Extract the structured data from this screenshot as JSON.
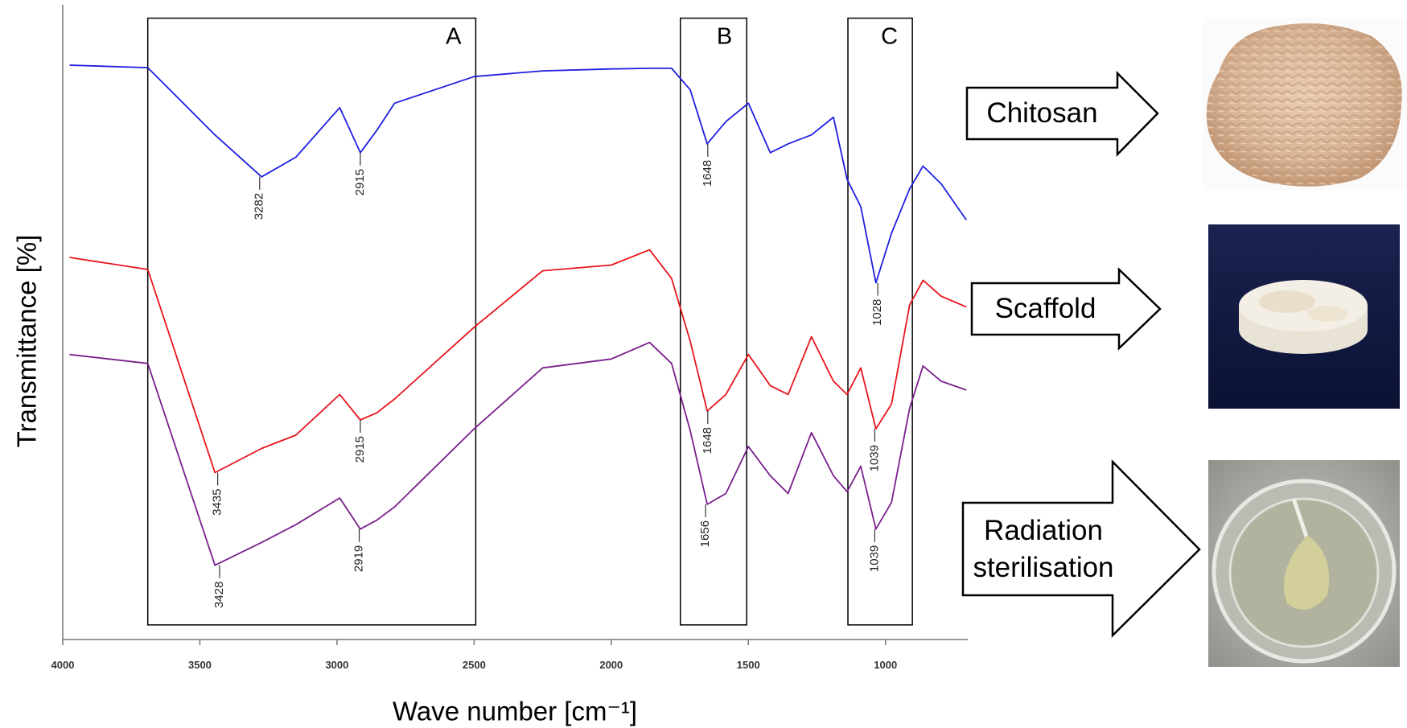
{
  "chart_data": {
    "type": "line",
    "y_label": "Transmittance [%]",
    "x_label": "Wave number [cm⁻¹]",
    "xlim": [
      4000,
      700
    ],
    "ylim": [
      0,
      100
    ],
    "xticks": [
      4000,
      3500,
      3000,
      2500,
      2000,
      1500,
      1000
    ],
    "x": [
      3975,
      3690,
      3445,
      3275,
      3150,
      2990,
      2915,
      2855,
      2790,
      2500,
      2250,
      2000,
      1860,
      1780,
      1712,
      1650,
      1582,
      1500,
      1420,
      1355,
      1270,
      1190,
      1140,
      1090,
      1035,
      978,
      912,
      863,
      797,
      705
    ],
    "series": [
      {
        "color": "#1f1fe0",
        "values": [
          90.5,
          90.1,
          79.5,
          72.9,
          76.0,
          83.8,
          76.7,
          80.2,
          84.5,
          88.7,
          89.6,
          89.9,
          90.0,
          90.0,
          86.6,
          78.1,
          81.6,
          84.5,
          76.7,
          78.1,
          79.5,
          82.3,
          72.5,
          68.2,
          56.2,
          64.0,
          71.0,
          74.6,
          71.8,
          66.1
        ]
      },
      {
        "color": "#e8141c",
        "values": [
          60.2,
          58.3,
          26.3,
          30.1,
          32.2,
          38.6,
          34.6,
          35.7,
          37.9,
          49.2,
          58.1,
          59.0,
          61.4,
          56.9,
          47.0,
          36.0,
          38.6,
          44.9,
          40.0,
          38.6,
          47.7,
          40.7,
          38.6,
          42.8,
          33.2,
          37.1,
          52.7,
          56.6,
          54.1,
          52.4
        ]
      },
      {
        "color": "#7a1f8c",
        "values": [
          44.9,
          43.5,
          11.7,
          15.3,
          18.1,
          22.3,
          17.4,
          18.8,
          20.9,
          33.2,
          42.8,
          44.2,
          46.8,
          43.5,
          32.9,
          21.3,
          23.0,
          30.4,
          25.8,
          23.0,
          32.6,
          25.8,
          23.3,
          27.3,
          17.4,
          21.6,
          36.4,
          43.1,
          40.7,
          39.3
        ]
      }
    ],
    "peaks": [
      {
        "x": 3282,
        "y": 72.9
      },
      {
        "x": 2915,
        "y": 76.7
      },
      {
        "x": 1648,
        "y": 78.1
      },
      {
        "x": 1028,
        "y": 56.2
      },
      {
        "x": 3435,
        "y": 26.3
      },
      {
        "x": 2915,
        "y": 34.6
      },
      {
        "x": 1648,
        "y": 36.0
      },
      {
        "x": 1039,
        "y": 33.2
      },
      {
        "x": 3428,
        "y": 11.7
      },
      {
        "x": 2919,
        "y": 17.4
      },
      {
        "x": 1656,
        "y": 21.3
      },
      {
        "x": 1039,
        "y": 17.4
      }
    ],
    "regions": [
      {
        "label": "A",
        "xlim": [
          3690,
          2494
        ],
        "ylim": [
          2.3,
          97.9
        ]
      },
      {
        "label": "B",
        "xlim": [
          1748,
          1506
        ],
        "ylim": [
          2.3,
          97.9
        ]
      },
      {
        "label": "C",
        "xlim": [
          1137,
          902
        ],
        "ylim": [
          2.3,
          97.9
        ]
      }
    ]
  },
  "steps": [
    "Chitosan",
    "Scaffold",
    "Radiation sterilisation"
  ]
}
